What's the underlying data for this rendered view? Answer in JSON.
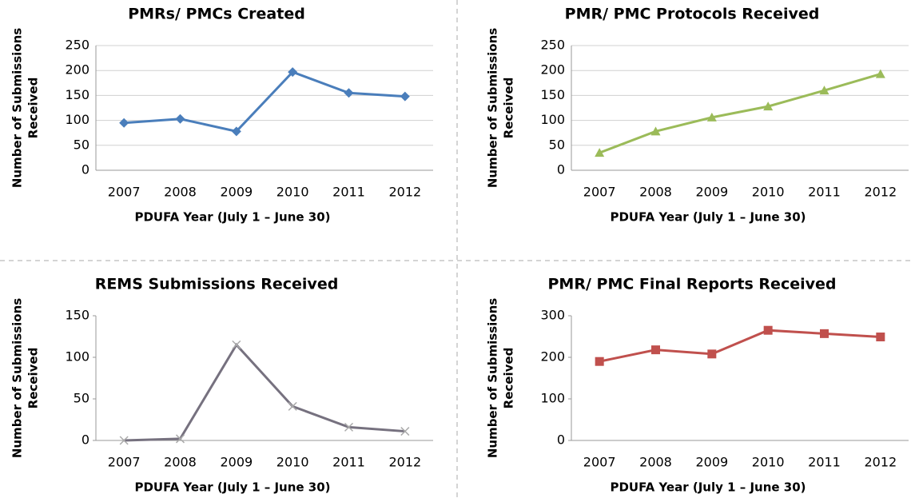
{
  "chart_data": [
    {
      "type": "line",
      "title": "PMRs/ PMCs Created",
      "x_label": "PDUFA Year (July 1 – June 30)",
      "y_label": [
        "Number of Submissions",
        "Received"
      ],
      "categories": [
        "2007",
        "2008",
        "2009",
        "2010",
        "2011",
        "2012"
      ],
      "series": [
        {
          "color": "#4a7ebb",
          "marker": "diamond",
          "values": [
            95,
            103,
            78,
            197,
            155,
            148
          ]
        }
      ],
      "ylim": [
        0,
        250
      ],
      "yticks": [
        0,
        50,
        100,
        150,
        200,
        250
      ],
      "grid": true
    },
    {
      "type": "line",
      "title": "PMR/ PMC Protocols Received",
      "x_label": "PDUFA Year (July 1 – June 30)",
      "y_label": [
        "Number of Submissions",
        "Received"
      ],
      "categories": [
        "2007",
        "2008",
        "2009",
        "2010",
        "2011",
        "2012"
      ],
      "series": [
        {
          "color": "#9bbb59",
          "marker": "triangle",
          "values": [
            35,
            78,
            106,
            128,
            160,
            193
          ]
        }
      ],
      "ylim": [
        0,
        250
      ],
      "yticks": [
        0,
        50,
        100,
        150,
        200,
        250
      ],
      "grid": true
    },
    {
      "type": "line",
      "title": "REMS Submissions Received",
      "x_label": "PDUFA Year (July 1 – June 30)",
      "y_label": [
        "Number of Submissions",
        "Received"
      ],
      "categories": [
        "2007",
        "2008",
        "2009",
        "2010",
        "2011",
        "2012"
      ],
      "series": [
        {
          "color": "#76717f",
          "marker": "x",
          "values": [
            0,
            2,
            115,
            41,
            16,
            11
          ]
        }
      ],
      "ylim": [
        0,
        150
      ],
      "yticks": [
        0,
        50,
        100,
        150
      ],
      "grid": false
    },
    {
      "type": "line",
      "title": "PMR/ PMC Final Reports Received",
      "x_label": "PDUFA Year (July 1 – June 30)",
      "y_label": [
        "Number of Submissions",
        "Received"
      ],
      "categories": [
        "2007",
        "2008",
        "2009",
        "2010",
        "2011",
        "2012"
      ],
      "series": [
        {
          "color": "#c0504d",
          "marker": "square",
          "values": [
            190,
            218,
            208,
            265,
            257,
            249
          ]
        }
      ],
      "ylim": [
        0,
        300
      ],
      "yticks": [
        0,
        100,
        200,
        300
      ],
      "grid": false
    }
  ]
}
